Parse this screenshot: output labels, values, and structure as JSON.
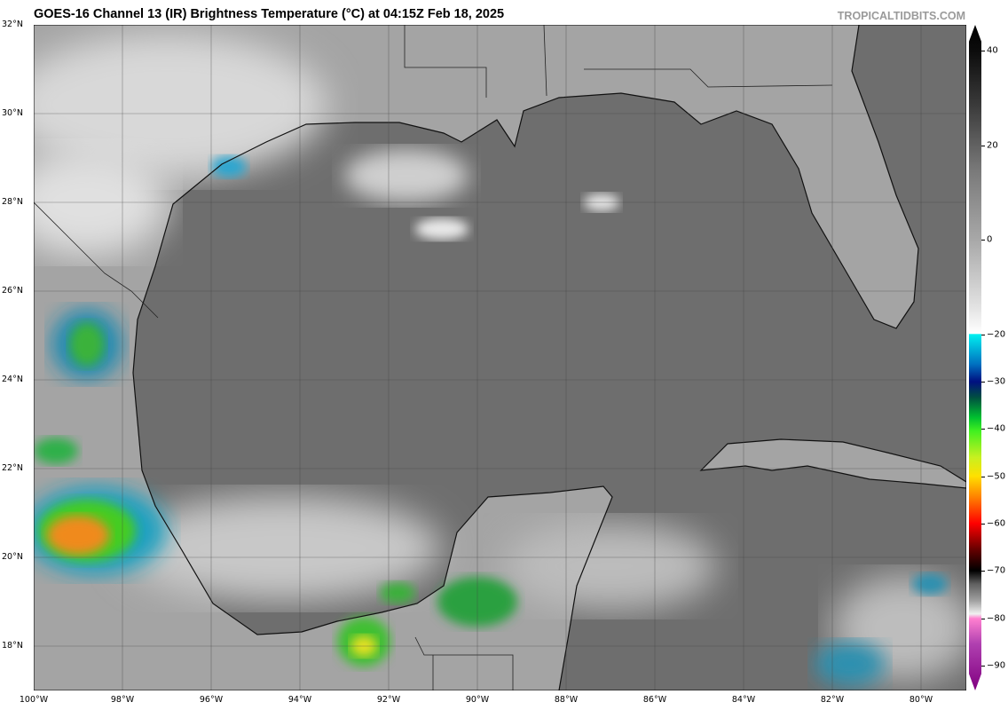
{
  "title": "GOES-16 Channel 13 (IR) Brightness Temperature (°C) at 04:15Z Feb 18, 2025",
  "site": "TROPICALTIDBITS.COM",
  "map": {
    "extent": {
      "lon": [
        "100W",
        "79W"
      ],
      "lat": [
        "17N",
        "32N"
      ]
    },
    "lat_labels": [
      "32°N",
      "30°N",
      "28°N",
      "26°N",
      "24°N",
      "22°N",
      "20°N",
      "18°N"
    ],
    "lon_labels": [
      "100°W",
      "98°W",
      "96°W",
      "94°W",
      "92°W",
      "90°W",
      "88°W",
      "86°W",
      "84°W",
      "82°W",
      "80°W"
    ],
    "ocean_color": "#6b6b6b",
    "land_color": "#a8a8a8"
  },
  "colorbar": {
    "ticks": [
      "40",
      "20",
      "0",
      "−20",
      "−30",
      "−40",
      "−50",
      "−60",
      "−70",
      "−80",
      "−90"
    ],
    "range": [
      -90,
      40
    ],
    "unit": "°C"
  }
}
